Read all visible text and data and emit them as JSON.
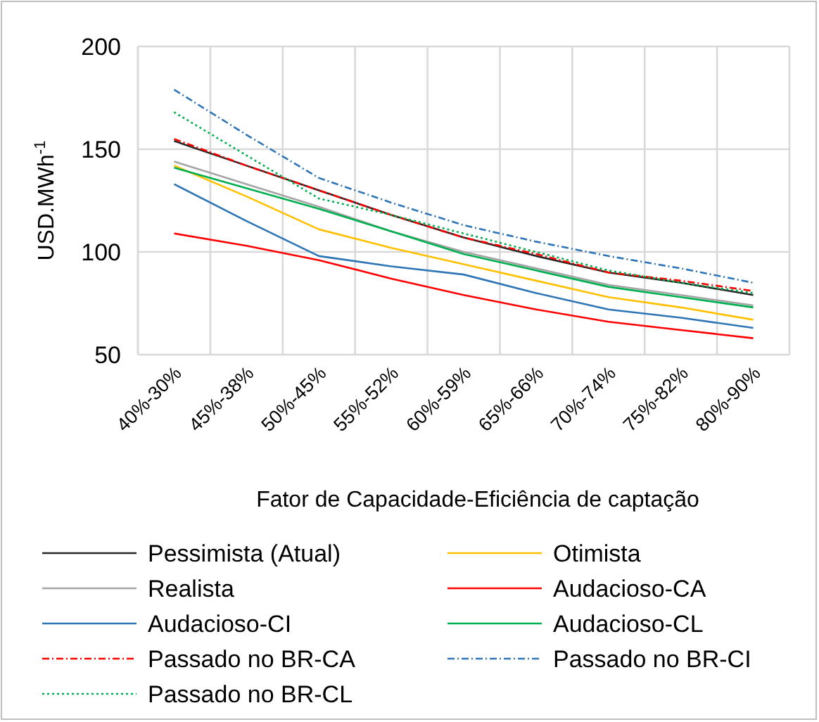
{
  "chart_data": {
    "type": "line",
    "xlabel": "Fator de Capacidade-Eficiência de captação",
    "ylabel": "USD.MWh$^{-1}$",
    "categories": [
      "40%-30%",
      "45%-38%",
      "50%-45%",
      "55%-52%",
      "60%-59%",
      "65%-66%",
      "70%-74%",
      "75%-82%",
      "80%-90%"
    ],
    "ylim": [
      50,
      200
    ],
    "yticks": [
      50,
      100,
      150,
      200
    ],
    "grid": true,
    "legend": "bottom",
    "marker": "none",
    "series": [
      {
        "name": "Pessimista (Atual)",
        "color": "#262626",
        "values": [
          154,
          142,
          130,
          118,
          107,
          98,
          90,
          85,
          79
        ]
      },
      {
        "name": "Otimista",
        "color": "#ffc000",
        "values": [
          142,
          127,
          111,
          102,
          94,
          86,
          78,
          73,
          67
        ]
      },
      {
        "name": "Realista",
        "color": "#a5a5a5",
        "values": [
          144,
          133,
          122,
          110,
          100,
          92,
          84,
          79,
          74
        ]
      },
      {
        "name": "Audacioso-CA",
        "color": "#ff0000",
        "values": [
          109,
          103,
          96,
          87,
          79,
          72,
          66,
          62,
          58
        ]
      },
      {
        "name": "Audacioso-CI",
        "color": "#2e75b6",
        "values": [
          133,
          115,
          98,
          93,
          89,
          80,
          72,
          68,
          63
        ]
      },
      {
        "name": "Audacioso-CL",
        "color": "#00b050",
        "values": [
          141,
          131,
          121,
          110,
          99,
          91,
          83,
          78,
          73
        ]
      },
      {
        "name": "Passado no BR-CA",
        "color": "#ff0000",
        "line_style": "dashed",
        "values": [
          155,
          142,
          130,
          118,
          107,
          99,
          90,
          86,
          81
        ]
      },
      {
        "name": "Passado no BR-CI",
        "color": "#2e75b6",
        "line_style": "dashed",
        "values": [
          179,
          157,
          136,
          124,
          113,
          105,
          98,
          92,
          85
        ]
      },
      {
        "name": "Passado no BR-CL",
        "color": "#00b050",
        "line_style": "dotted",
        "values": [
          168,
          147,
          126,
          118,
          109,
          100,
          91,
          85,
          80
        ]
      }
    ]
  }
}
